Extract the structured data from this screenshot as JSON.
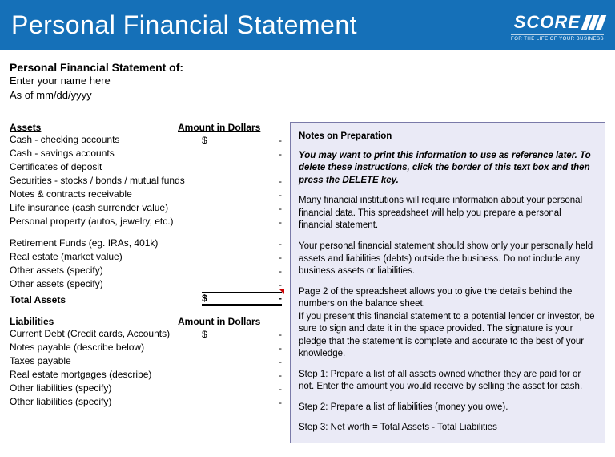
{
  "banner": {
    "title": "Personal Financial Statement",
    "brand": "SCORE",
    "tagline": "FOR THE LIFE OF YOUR BUSINESS",
    "bg_color": "#1570b8"
  },
  "subtitle": {
    "heading": "Personal Financial Statement of:",
    "name_line": "Enter your name here",
    "date_line": "As of mm/dd/yyyy"
  },
  "assets": {
    "header_label": "Assets",
    "header_amount": "Amount in Dollars",
    "currency": "$",
    "dash": "-",
    "rows_top": [
      "Cash - checking accounts",
      "Cash - savings accounts",
      "Certificates of deposit",
      "Securities - stocks / bonds / mutual funds",
      "Notes & contracts receivable",
      "Life insurance (cash surrender value)",
      "Personal property (autos, jewelry, etc.)"
    ],
    "rows_bottom": [
      "Retirement Funds (eg. IRAs, 401k)",
      "Real estate (market value)",
      "Other assets (specify)",
      "Other assets (specify)"
    ],
    "total_label": "Total Assets"
  },
  "liabilities": {
    "header_label": "Liabilities",
    "header_amount": "Amount in Dollars",
    "currency": "$",
    "dash": "-",
    "rows": [
      "Current Debt (Credit cards, Accounts)",
      "Notes payable (describe below)",
      "Taxes payable",
      "Real estate mortgages (describe)",
      "Other liabilities (specify)",
      "Other liabilities (specify)"
    ]
  },
  "notes": {
    "title": "Notes on Preparation",
    "lead": "You may want to print this information to use as reference later. To delete these instructions, click the border of this text box and then press the DELETE key.",
    "p1": "Many financial institutions will require information about your personal financial data. This spreadsheet will help you prepare a personal financial statement.",
    "p2": "Your personal financial statement should show only your personally held assets and liabilities (debts) outside the business. Do not include any business assets or liabilities.",
    "p3a": "Page 2 of the spreadsheet allows you to give the details behind the numbers on the balance sheet.",
    "p3b": "If you present this financial statement to a potential lender or investor, be sure to sign and date it in the space provided. The signature is your pledge that the statement is complete and accurate to the best of your knowledge.",
    "step1": "Step 1: Prepare a list of all assets owned whether they are paid for or not. Enter the amount you would receive by selling the asset for cash.",
    "step2": "Step 2: Prepare a list of liabilities (money you owe).",
    "step3": "Step 3: Net worth = Total Assets - Total Liabilities"
  },
  "notes_box": {
    "bg_color": "#eaeaf6",
    "border_color": "#7a7aa8"
  }
}
